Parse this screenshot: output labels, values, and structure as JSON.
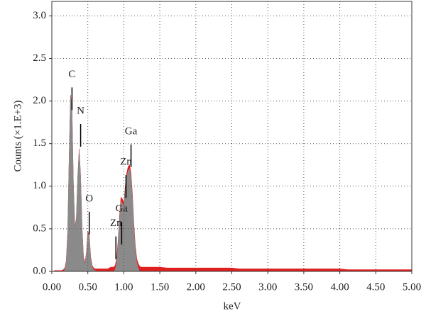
{
  "chart_data": {
    "type": "area",
    "x_label": "keV",
    "y_label": "Counts (×1.E+3)",
    "x": [
      0,
      0.02,
      0.04,
      0.06,
      0.08,
      0.1,
      0.12,
      0.14,
      0.16,
      0.18,
      0.2,
      0.22,
      0.24,
      0.26,
      0.28,
      0.3,
      0.32,
      0.34,
      0.36,
      0.38,
      0.4,
      0.42,
      0.44,
      0.46,
      0.48,
      0.5,
      0.52,
      0.54,
      0.56,
      0.58,
      0.6,
      0.62,
      0.64,
      0.66,
      0.68,
      0.7,
      0.72,
      0.74,
      0.76,
      0.78,
      0.8,
      0.82,
      0.84,
      0.86,
      0.88,
      0.9,
      0.92,
      0.94,
      0.96,
      0.98,
      1,
      1.02,
      1.04,
      1.06,
      1.08,
      1.1,
      1.12,
      1.14,
      1.16,
      1.18,
      1.2,
      1.22,
      1.24,
      1.26,
      1.28,
      1.3,
      1.4,
      1.5,
      1.6,
      1.7,
      1.8,
      1.9,
      2,
      2.1,
      2.2,
      2.3,
      2.4,
      2.5,
      2.6,
      2.7,
      2.8,
      2.9,
      3,
      3.1,
      3.2,
      3.3,
      3.4,
      3.5,
      3.6,
      3.7,
      3.8,
      3.9,
      4,
      4.1,
      4.2,
      4.3,
      4.4,
      4.5,
      4.6,
      4.7,
      4.8,
      4.9,
      5
    ],
    "series": [
      {
        "color": "#e02020",
        "values": [
          0,
          0,
          0.01,
          0.01,
          0.01,
          0.01,
          0.01,
          0.01,
          0.02,
          0.04,
          0.12,
          0.47,
          1.32,
          2.07,
          1.92,
          1.02,
          0.52,
          0.62,
          1.12,
          1.44,
          1.12,
          0.52,
          0.17,
          0.1,
          0.22,
          0.47,
          0.42,
          0.17,
          0.07,
          0.04,
          0.03,
          0.03,
          0.03,
          0.03,
          0.03,
          0.03,
          0.03,
          0.03,
          0.03,
          0.03,
          0.04,
          0.05,
          0.05,
          0.05,
          0.07,
          0.15,
          0.35,
          0.65,
          0.87,
          0.85,
          0.8,
          1.0,
          1.15,
          1.23,
          1.25,
          1.15,
          0.9,
          0.55,
          0.3,
          0.15,
          0.09,
          0.06,
          0.05,
          0.05,
          0.05,
          0.05,
          0.05,
          0.05,
          0.04,
          0.04,
          0.04,
          0.04,
          0.04,
          0.04,
          0.04,
          0.04,
          0.04,
          0.04,
          0.03,
          0.03,
          0.03,
          0.03,
          0.03,
          0.03,
          0.03,
          0.03,
          0.03,
          0.03,
          0.03,
          0.03,
          0.03,
          0.03,
          0.03,
          0.02,
          0.02,
          0.02,
          0.02,
          0.02,
          0.02,
          0.02,
          0.02,
          0.02,
          0.02
        ]
      },
      {
        "color": "#8a8a8a",
        "values": [
          0,
          0,
          0,
          0,
          0,
          0,
          0,
          0,
          0,
          0.02,
          0.1,
          0.45,
          1.3,
          2.05,
          1.9,
          1.0,
          0.5,
          0.6,
          1.1,
          1.42,
          1.1,
          0.5,
          0.15,
          0.08,
          0.2,
          0.45,
          0.4,
          0.15,
          0.05,
          0.02,
          0.01,
          0,
          0,
          0,
          0,
          0,
          0,
          0,
          0,
          0,
          0,
          0,
          0,
          0,
          0.02,
          0.1,
          0.3,
          0.6,
          0.82,
          0.8,
          0.75,
          0.95,
          1.1,
          1.18,
          1.2,
          1.1,
          0.85,
          0.5,
          0.25,
          0.1,
          0.04,
          0,
          0,
          0,
          0,
          0,
          0,
          0,
          0,
          0,
          0,
          0,
          0,
          0,
          0,
          0,
          0,
          0,
          0,
          0,
          0,
          0,
          0,
          0,
          0,
          0,
          0,
          0,
          0,
          0,
          0,
          0,
          0,
          0,
          0,
          0,
          0,
          0,
          0,
          0,
          0,
          0,
          0
        ]
      }
    ],
    "annotations": [
      {
        "text": "C",
        "x": 0.28,
        "y": 2.31
      },
      {
        "text": "N",
        "x": 0.4,
        "y": 1.88
      },
      {
        "text": "O",
        "x": 0.52,
        "y": 0.85
      },
      {
        "text": "Zn",
        "x": 0.89,
        "y": 0.56
      },
      {
        "text": "Ga",
        "x": 0.97,
        "y": 0.73
      },
      {
        "text": "Zn",
        "x": 1.03,
        "y": 1.28
      },
      {
        "text": "Ga",
        "x": 1.1,
        "y": 1.64
      }
    ],
    "xlim": [
      0,
      5
    ],
    "ylim": [
      0,
      3.17
    ],
    "xticks": [
      {
        "value": 0,
        "label": "0.00"
      },
      {
        "value": 0.5,
        "label": "0.50"
      },
      {
        "value": 1,
        "label": "1.00"
      },
      {
        "value": 1.5,
        "label": "1.50"
      },
      {
        "value": 2,
        "label": "2.00"
      },
      {
        "value": 2.5,
        "label": "2.50"
      },
      {
        "value": 3,
        "label": "3.00"
      },
      {
        "value": 3.5,
        "label": "3.50"
      },
      {
        "value": 4,
        "label": "4.00"
      },
      {
        "value": 4.5,
        "label": "4.50"
      },
      {
        "value": 5,
        "label": "5.00"
      }
    ],
    "yticks": [
      {
        "value": 0,
        "label": "0.0"
      },
      {
        "value": 0.5,
        "label": "0.5"
      },
      {
        "value": 1,
        "label": "1.0"
      },
      {
        "value": 1.5,
        "label": "1.5"
      },
      {
        "value": 2,
        "label": "2.0"
      },
      {
        "value": 2.5,
        "label": "2.5"
      },
      {
        "value": 3,
        "label": "3.0"
      }
    ],
    "grid": true
  }
}
